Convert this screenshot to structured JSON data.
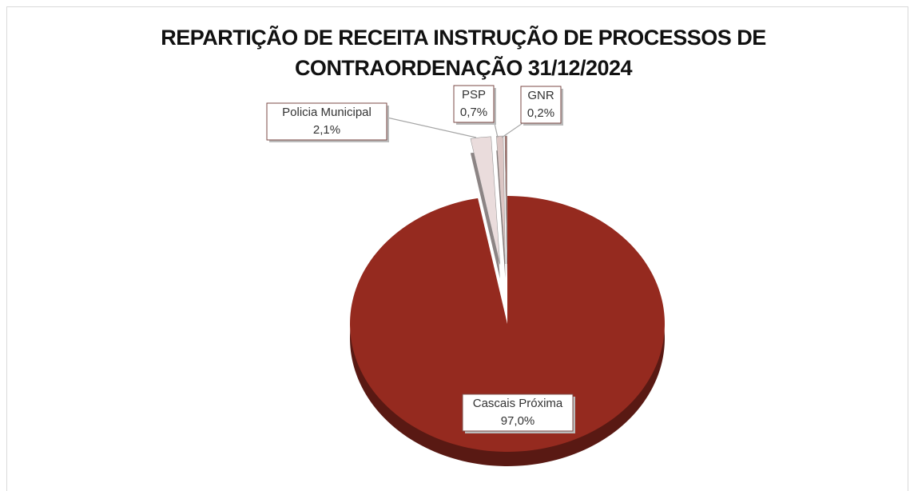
{
  "chart_data": {
    "type": "pie",
    "title": "REPARTIÇÃO DE RECEITA INSTRUÇÃO DE PROCESSOS DE CONTRAORDENAÇÃO 31/12/2024",
    "categories": [
      "Cascais Próxima",
      "Policia Municipal",
      "PSP",
      "GNR"
    ],
    "values": [
      97.0,
      2.1,
      0.7,
      0.2
    ],
    "value_labels": [
      "97,0%",
      "2,1%",
      "0,7%",
      "0,2%"
    ],
    "colors": [
      "#952a1f",
      "#eadcdc",
      "#dcc6c4",
      "#a36f68"
    ]
  }
}
